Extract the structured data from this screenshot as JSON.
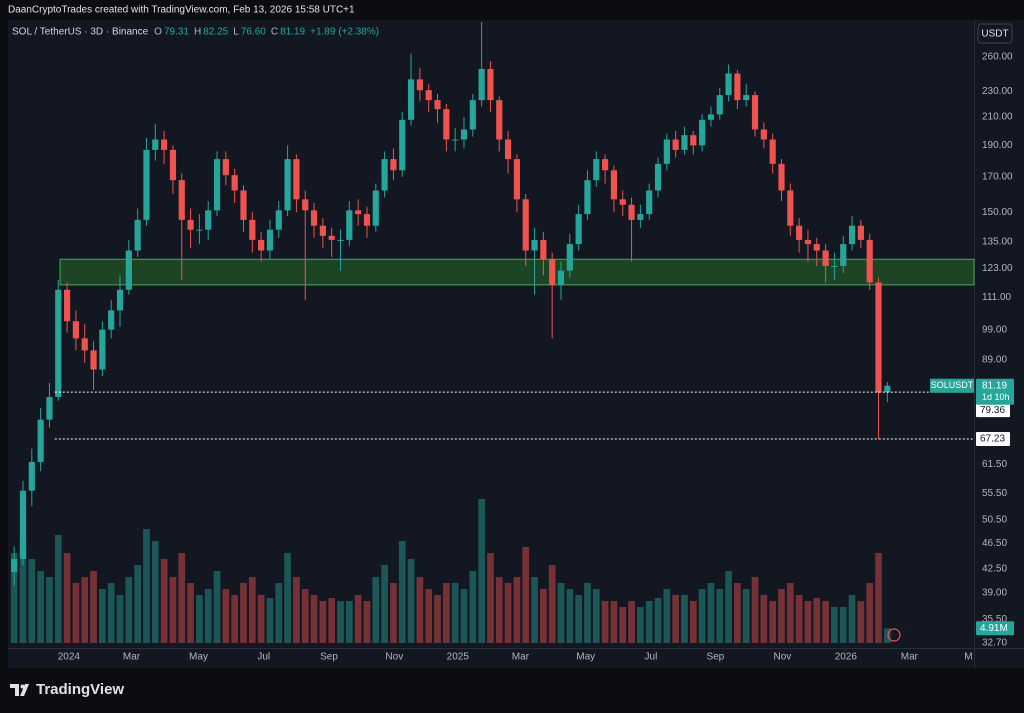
{
  "header": {
    "text": "DaanCryptoTrades created with TradingView.com, Feb 13, 2026 15:58 UTC+1"
  },
  "footer": {
    "logo": "TradingView"
  },
  "chart_data": {
    "type": "candlestick",
    "symbol": "SOL / TetherUS · 3D · Binance",
    "ohlc_legend": [
      {
        "key": "O",
        "value": "79.31"
      },
      {
        "key": "H",
        "value": "82.25"
      },
      {
        "key": "L",
        "value": "76.60"
      },
      {
        "key": "C",
        "value": "81.19"
      }
    ],
    "change": "+1.89 (+2.38%)",
    "currency": "USDT",
    "up_color": "#26a69a",
    "down_color": "#ef5350",
    "log_scale": true,
    "grid": false,
    "ylim": [
      32.1,
      294
    ],
    "yticks": [
      {
        "value": 260,
        "label": "260.00"
      },
      {
        "value": 230,
        "label": "230.00"
      },
      {
        "value": 210,
        "label": "210.00"
      },
      {
        "value": 190,
        "label": "190.00"
      },
      {
        "value": 170,
        "label": "170.00"
      },
      {
        "value": 150,
        "label": "150.00"
      },
      {
        "value": 135,
        "label": "135.00"
      },
      {
        "value": 123,
        "label": "123.00"
      },
      {
        "value": 111,
        "label": "111.00"
      },
      {
        "value": 99,
        "label": "99.00"
      },
      {
        "value": 89,
        "label": "89.00"
      },
      {
        "value": 61.5,
        "label": "61.50"
      },
      {
        "value": 55.5,
        "label": "55.50"
      },
      {
        "value": 50.5,
        "label": "50.50"
      },
      {
        "value": 46.5,
        "label": "46.50"
      },
      {
        "value": 42.5,
        "label": "42.50"
      },
      {
        "value": 39,
        "label": "39.00"
      },
      {
        "value": 35.5,
        "label": "35.50"
      },
      {
        "value": 32.7,
        "label": "32.70"
      }
    ],
    "xlim": [
      -0.7,
      108.6
    ],
    "xticks": [
      {
        "value": 6.2,
        "label": "2024"
      },
      {
        "value": 13.3,
        "label": "Mar"
      },
      {
        "value": 20.9,
        "label": "May"
      },
      {
        "value": 28.3,
        "label": "Jul"
      },
      {
        "value": 35.7,
        "label": "Sep"
      },
      {
        "value": 43.1,
        "label": "Nov"
      },
      {
        "value": 50.3,
        "label": "2025"
      },
      {
        "value": 57.4,
        "label": "Mar"
      },
      {
        "value": 64.8,
        "label": "May"
      },
      {
        "value": 72.2,
        "label": "Jul"
      },
      {
        "value": 79.5,
        "label": "Sep"
      },
      {
        "value": 87.1,
        "label": "Nov"
      },
      {
        "value": 94.3,
        "label": "2026"
      },
      {
        "value": 101.5,
        "label": "Mar"
      },
      {
        "value": 108.2,
        "label": "M"
      }
    ],
    "candles": {
      "open": [
        42,
        44,
        56,
        62,
        72,
        78,
        114,
        102,
        96,
        92,
        86,
        99,
        106,
        114,
        131,
        146,
        187,
        194,
        187,
        168,
        146,
        141,
        141,
        151,
        181,
        171,
        162,
        146,
        136,
        131,
        141,
        151,
        181,
        157,
        151,
        143,
        138,
        136,
        136,
        151,
        149,
        143,
        162,
        181,
        174,
        208,
        240,
        231,
        223,
        216,
        194,
        194,
        201,
        223,
        249,
        223,
        194,
        181,
        157,
        131,
        136,
        127,
        116,
        122,
        134,
        149,
        168,
        181,
        174,
        157,
        154,
        146,
        149,
        162,
        178,
        194,
        187,
        197,
        190,
        208,
        212,
        227,
        245,
        223,
        227,
        201,
        194,
        178,
        162,
        143,
        136,
        134,
        131,
        124,
        124,
        134,
        143,
        136,
        117,
        79.31
      ],
      "high": [
        46,
        58,
        65,
        75,
        82,
        118,
        117,
        106,
        101,
        95,
        102,
        110,
        120,
        136,
        152,
        195,
        205,
        200,
        190,
        172,
        152,
        149,
        156,
        186,
        186,
        175,
        165,
        150,
        140,
        146,
        156,
        190,
        184,
        162,
        155,
        147,
        142,
        141,
        156,
        157,
        153,
        166,
        186,
        188,
        214,
        263,
        250,
        236,
        228,
        220,
        202,
        210,
        228,
        294,
        256,
        226,
        200,
        184,
        160,
        142,
        140,
        130,
        126,
        139,
        154,
        174,
        186,
        184,
        177,
        162,
        158,
        154,
        166,
        182,
        198,
        200,
        203,
        200,
        212,
        218,
        233,
        253,
        248,
        236,
        230,
        206,
        198,
        181,
        166,
        147,
        141,
        137,
        134,
        130,
        138,
        148,
        146,
        139,
        119,
        82.25
      ],
      "low": [
        40,
        43,
        53,
        60,
        70,
        77,
        98,
        92,
        88,
        80,
        84,
        96,
        100,
        112,
        128,
        143,
        180,
        178,
        160,
        118,
        132,
        134,
        136,
        148,
        165,
        155,
        140,
        130,
        126,
        127,
        137,
        148,
        150,
        110,
        137,
        132,
        128,
        122,
        133,
        143,
        137,
        140,
        158,
        168,
        170,
        204,
        222,
        214,
        206,
        186,
        186,
        188,
        196,
        218,
        214,
        186,
        172,
        150,
        124,
        112,
        120,
        96,
        110,
        119,
        131,
        146,
        164,
        166,
        150,
        148,
        126,
        142,
        146,
        158,
        174,
        182,
        184,
        184,
        186,
        203,
        208,
        222,
        216,
        218,
        196,
        188,
        172,
        156,
        138,
        130,
        126,
        124,
        117,
        118,
        121,
        131,
        132,
        114,
        67.23,
        76.6
      ],
      "close": [
        44,
        56,
        62,
        72,
        78,
        114,
        102,
        96,
        92,
        86,
        99,
        106,
        114,
        131,
        146,
        187,
        194,
        187,
        168,
        146,
        141,
        141,
        151,
        181,
        171,
        162,
        146,
        136,
        131,
        141,
        151,
        181,
        157,
        151,
        143,
        138,
        136,
        136,
        151,
        149,
        143,
        162,
        181,
        174,
        208,
        240,
        231,
        223,
        216,
        194,
        194,
        201,
        223,
        249,
        223,
        194,
        181,
        157,
        131,
        136,
        127,
        116,
        122,
        134,
        149,
        168,
        181,
        174,
        157,
        154,
        146,
        149,
        162,
        178,
        194,
        187,
        197,
        190,
        208,
        212,
        227,
        245,
        223,
        227,
        201,
        194,
        178,
        162,
        143,
        136,
        134,
        131,
        124,
        124,
        134,
        143,
        136,
        117,
        79.31,
        81.19
      ]
    },
    "volume": [
      30,
      34,
      28,
      24,
      22,
      36,
      30,
      20,
      22,
      24,
      18,
      20,
      16,
      22,
      26,
      38,
      34,
      28,
      22,
      30,
      20,
      16,
      18,
      24,
      18,
      16,
      20,
      22,
      16,
      15,
      20,
      30,
      22,
      18,
      16,
      14,
      15,
      14,
      14,
      16,
      14,
      22,
      26,
      20,
      34,
      28,
      22,
      18,
      16,
      20,
      20,
      18,
      24,
      48,
      30,
      22,
      20,
      22,
      32,
      22,
      18,
      26,
      20,
      18,
      16,
      20,
      18,
      14,
      14,
      12,
      14,
      12,
      14,
      15,
      18,
      16,
      16,
      14,
      18,
      20,
      18,
      24,
      20,
      18,
      22,
      16,
      14,
      18,
      20,
      16,
      14,
      15,
      14,
      12,
      12,
      16,
      14,
      20,
      30,
      4.91
    ],
    "volume_lim": [
      0,
      70
    ],
    "volume_last_label": "4.91M",
    "zone": {
      "low": 116,
      "high": 127,
      "x0": 5.2,
      "color": "#1d4d26",
      "edge": "#3fae4a"
    },
    "price_lines": [
      {
        "value": 79.36,
        "x0": 4.6
      },
      {
        "value": 67.23,
        "x0": 4.6
      }
    ],
    "last_price": {
      "symbol": "SOLUSDT",
      "value": 81.19,
      "countdown": "1d 10h"
    }
  }
}
